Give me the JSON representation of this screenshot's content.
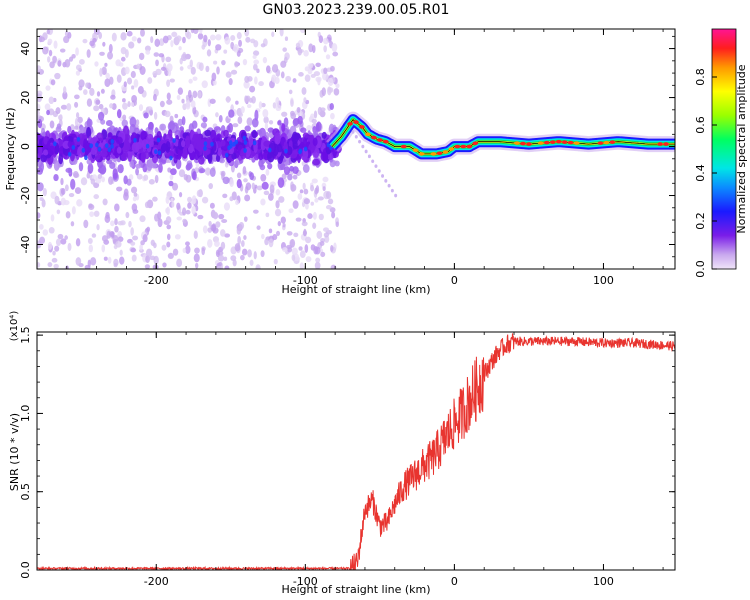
{
  "title": "GN03.2023.239.00.05.R01",
  "chart_data": [
    {
      "type": "heatmap",
      "xlabel": "Height of straight line (km)",
      "ylabel": "Frequency (Hz)",
      "xlim": [
        -280,
        148
      ],
      "ylim": [
        -50,
        48
      ],
      "xticks": [
        -200,
        -100,
        0,
        100
      ],
      "yticks": [
        -40,
        -20,
        0,
        20,
        40
      ],
      "grid": false,
      "colorbar": {
        "label": "Normalized spectral amplitude",
        "range": [
          0,
          1
        ],
        "ticks": [
          0.0,
          0.2,
          0.4,
          0.6,
          0.8
        ],
        "tick_labels": [
          "0.0",
          "0.2",
          "0.4",
          "0.6",
          "0.8"
        ],
        "colormap": "rainbow (lavender-purple-blue-cyan-green-yellow-orange-red-magenta)"
      },
      "ridge": {
        "x": [
          -82,
          -76,
          -68,
          -62,
          -58,
          -52,
          -46,
          -40,
          -30,
          -22,
          -12,
          -4,
          0,
          10,
          16,
          30,
          50,
          70,
          90,
          110,
          130,
          148
        ],
        "y": [
          0,
          4,
          11,
          8,
          5,
          3,
          2,
          0,
          0,
          -3,
          -3,
          -2,
          0,
          0,
          2,
          2,
          1,
          2,
          1,
          2,
          1,
          1
        ]
      },
      "noise_region_x": [
        -280,
        -78
      ]
    },
    {
      "type": "line",
      "xlabel": "Height of straight line (km)",
      "ylabel": "SNR (10 * v/v)",
      "y_multiplier": "(x10⁴)",
      "xlim": [
        -280,
        148
      ],
      "ylim": [
        0,
        1.52
      ],
      "xticks": [
        -200,
        -100,
        0,
        100
      ],
      "yticks": [
        0.0,
        0.5,
        1.0,
        1.5
      ],
      "ytick_labels": [
        "0.0",
        "0.5",
        "1.0",
        "1.5"
      ],
      "color": "#e8342f",
      "grid": false,
      "trend": {
        "x": [
          -280,
          -70,
          -65,
          -60,
          -55,
          -50,
          -45,
          -40,
          -35,
          -30,
          -25,
          -20,
          -15,
          -10,
          -5,
          0,
          5,
          10,
          15,
          20,
          25,
          30,
          35,
          40,
          45,
          50,
          60,
          80,
          100,
          120,
          148
        ],
        "y": [
          0.01,
          0.01,
          0.05,
          0.38,
          0.45,
          0.28,
          0.3,
          0.42,
          0.52,
          0.57,
          0.62,
          0.67,
          0.71,
          0.78,
          0.86,
          0.93,
          1.0,
          1.08,
          1.16,
          1.25,
          1.33,
          1.4,
          1.44,
          1.46,
          1.46,
          1.46,
          1.46,
          1.46,
          1.45,
          1.45,
          1.43
        ]
      },
      "noise_amplitude": 0.07
    }
  ]
}
